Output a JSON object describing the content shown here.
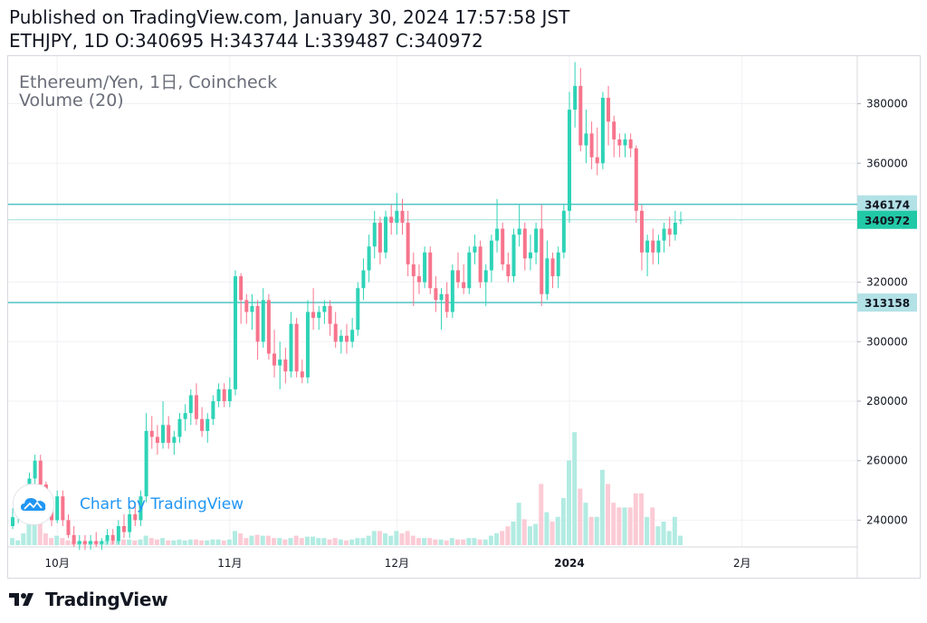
{
  "header": {
    "published": "Published on TradingView.com, January 30, 2024 17:57:58 JST",
    "ohlc": "ETHJPY, 1D O:340695 H:343744 L:339487 C:340972"
  },
  "legend": {
    "title": "Ethereum/Yen, 1日, Coincheck",
    "volume": "Volume (20)"
  },
  "watermark": {
    "text": "Chart by TradingView",
    "icon": "tradingview-cloud-icon"
  },
  "footer": {
    "brand": "TradingView",
    "icon": "tradingview-logo-icon"
  },
  "colors": {
    "up": "#26a69a",
    "down": "#ef5350",
    "upBody": "#2ed3b7",
    "downBody": "#f7748c",
    "upVol": "#b2ebe2",
    "downVol": "#fbcbd5",
    "hline": "#4fc3c3",
    "lastPriceBg": "#22c9a6",
    "levelBg": "#b2e1e6"
  },
  "chart_data": {
    "type": "candlestick",
    "symbol": "ETHJPY",
    "interval": "1D",
    "exchange": "Coincheck",
    "y_ticks": [
      240000,
      260000,
      280000,
      300000,
      320000,
      340000,
      360000,
      380000
    ],
    "ylim": [
      231000,
      396000
    ],
    "x_ticks": [
      {
        "label": "10月",
        "index": 8
      },
      {
        "label": "11月",
        "index": 39
      },
      {
        "label": "12月",
        "index": 69
      },
      {
        "label": "2024",
        "index": 100,
        "bold": true
      },
      {
        "label": "2月",
        "index": 131
      }
    ],
    "horizontal_levels": [
      {
        "label": "346174",
        "value": 346174
      },
      {
        "label": "313158",
        "value": 313158
      }
    ],
    "last_price": {
      "label": "340972",
      "value": 340972
    },
    "ohlc": [
      [
        238000,
        244000,
        237000,
        241000
      ],
      [
        241000,
        245000,
        239000,
        242000
      ],
      [
        242000,
        250000,
        240000,
        248000
      ],
      [
        248000,
        256000,
        246000,
        254000
      ],
      [
        254000,
        262000,
        252000,
        260000
      ],
      [
        260000,
        262000,
        250000,
        252000
      ],
      [
        252000,
        253000,
        242000,
        244000
      ],
      [
        244000,
        248000,
        238000,
        240000
      ],
      [
        240000,
        250000,
        239000,
        248000
      ],
      [
        248000,
        250000,
        238000,
        240000
      ],
      [
        240000,
        242000,
        234000,
        235000
      ],
      [
        235000,
        238000,
        231000,
        232000
      ],
      [
        232000,
        235000,
        230000,
        233000
      ],
      [
        233000,
        235000,
        230000,
        232000
      ],
      [
        232000,
        235000,
        230000,
        233000
      ],
      [
        233000,
        236000,
        231000,
        232000
      ],
      [
        232000,
        234000,
        230000,
        233000
      ],
      [
        233000,
        237000,
        232000,
        235000
      ],
      [
        235000,
        237000,
        232000,
        233000
      ],
      [
        233000,
        240000,
        232000,
        238000
      ],
      [
        238000,
        242000,
        234000,
        236000
      ],
      [
        236000,
        244000,
        234000,
        242000
      ],
      [
        242000,
        246000,
        238000,
        240000
      ],
      [
        240000,
        250000,
        238000,
        248000
      ],
      [
        248000,
        276000,
        246000,
        270000
      ],
      [
        270000,
        275000,
        264000,
        268000
      ],
      [
        268000,
        272000,
        262000,
        266000
      ],
      [
        266000,
        280000,
        264000,
        272000
      ],
      [
        272000,
        275000,
        264000,
        266000
      ],
      [
        266000,
        270000,
        262000,
        268000
      ],
      [
        268000,
        276000,
        266000,
        274000
      ],
      [
        274000,
        279000,
        270000,
        276000
      ],
      [
        276000,
        284000,
        272000,
        282000
      ],
      [
        282000,
        286000,
        272000,
        274000
      ],
      [
        274000,
        278000,
        268000,
        270000
      ],
      [
        270000,
        276000,
        266000,
        274000
      ],
      [
        274000,
        282000,
        272000,
        280000
      ],
      [
        280000,
        286000,
        278000,
        284000
      ],
      [
        284000,
        286000,
        278000,
        280000
      ],
      [
        280000,
        288000,
        278000,
        284000
      ],
      [
        284000,
        324000,
        282000,
        322000
      ],
      [
        322000,
        323000,
        306000,
        314000
      ],
      [
        314000,
        316000,
        306000,
        310000
      ],
      [
        310000,
        316000,
        304000,
        312000
      ],
      [
        312000,
        314000,
        294000,
        300000
      ],
      [
        300000,
        318000,
        298000,
        314000
      ],
      [
        314000,
        316000,
        294000,
        296000
      ],
      [
        296000,
        304000,
        288000,
        292000
      ],
      [
        292000,
        300000,
        284000,
        294000
      ],
      [
        294000,
        298000,
        286000,
        290000
      ],
      [
        290000,
        310000,
        288000,
        306000
      ],
      [
        306000,
        308000,
        288000,
        290000
      ],
      [
        290000,
        294000,
        286000,
        288000
      ],
      [
        288000,
        314000,
        286000,
        310000
      ],
      [
        310000,
        318000,
        304000,
        308000
      ],
      [
        308000,
        312000,
        304000,
        310000
      ],
      [
        310000,
        314000,
        306000,
        312000
      ],
      [
        312000,
        314000,
        302000,
        306000
      ],
      [
        306000,
        310000,
        298000,
        300000
      ],
      [
        300000,
        304000,
        296000,
        302000
      ],
      [
        302000,
        306000,
        296000,
        300000
      ],
      [
        300000,
        308000,
        298000,
        304000
      ],
      [
        304000,
        320000,
        302000,
        318000
      ],
      [
        318000,
        328000,
        314000,
        324000
      ],
      [
        324000,
        336000,
        320000,
        332000
      ],
      [
        332000,
        344000,
        328000,
        340000
      ],
      [
        340000,
        342000,
        326000,
        330000
      ],
      [
        330000,
        344000,
        328000,
        342000
      ],
      [
        342000,
        346000,
        336000,
        340000
      ],
      [
        340000,
        350000,
        336000,
        344000
      ],
      [
        344000,
        348000,
        336000,
        340000
      ],
      [
        340000,
        344000,
        322000,
        326000
      ],
      [
        326000,
        330000,
        312000,
        322000
      ],
      [
        322000,
        326000,
        316000,
        320000
      ],
      [
        320000,
        332000,
        318000,
        330000
      ],
      [
        330000,
        332000,
        316000,
        318000
      ],
      [
        318000,
        322000,
        310000,
        314000
      ],
      [
        314000,
        318000,
        304000,
        316000
      ],
      [
        316000,
        320000,
        308000,
        310000
      ],
      [
        310000,
        326000,
        308000,
        324000
      ],
      [
        324000,
        330000,
        318000,
        320000
      ],
      [
        320000,
        326000,
        316000,
        318000
      ],
      [
        318000,
        332000,
        316000,
        330000
      ],
      [
        330000,
        336000,
        326000,
        332000
      ],
      [
        332000,
        334000,
        318000,
        320000
      ],
      [
        320000,
        326000,
        312000,
        324000
      ],
      [
        324000,
        336000,
        320000,
        334000
      ],
      [
        334000,
        348000,
        330000,
        338000
      ],
      [
        338000,
        340000,
        324000,
        326000
      ],
      [
        326000,
        330000,
        320000,
        322000
      ],
      [
        322000,
        338000,
        320000,
        336000
      ],
      [
        336000,
        346000,
        332000,
        338000
      ],
      [
        338000,
        340000,
        324000,
        328000
      ],
      [
        328000,
        336000,
        324000,
        330000
      ],
      [
        330000,
        340000,
        326000,
        338000
      ],
      [
        338000,
        346000,
        312000,
        316000
      ],
      [
        316000,
        334000,
        314000,
        328000
      ],
      [
        328000,
        330000,
        318000,
        322000
      ],
      [
        322000,
        332000,
        318000,
        330000
      ],
      [
        330000,
        346000,
        328000,
        344000
      ],
      [
        344000,
        384000,
        340000,
        378000
      ],
      [
        378000,
        394000,
        372000,
        386000
      ],
      [
        386000,
        392000,
        364000,
        366000
      ],
      [
        366000,
        378000,
        360000,
        370000
      ],
      [
        370000,
        374000,
        358000,
        362000
      ],
      [
        362000,
        372000,
        356000,
        360000
      ],
      [
        360000,
        384000,
        358000,
        382000
      ],
      [
        382000,
        386000,
        366000,
        374000
      ],
      [
        374000,
        376000,
        362000,
        368000
      ],
      [
        368000,
        370000,
        362000,
        366000
      ],
      [
        366000,
        370000,
        362000,
        368000
      ],
      [
        368000,
        370000,
        362000,
        365000
      ],
      [
        365000,
        366000,
        340000,
        344000
      ],
      [
        344000,
        346000,
        324000,
        330000
      ],
      [
        330000,
        336000,
        322000,
        334000
      ],
      [
        334000,
        338000,
        326000,
        330000
      ],
      [
        330000,
        336000,
        326000,
        334000
      ],
      [
        334000,
        340000,
        330000,
        338000
      ],
      [
        338000,
        342000,
        332000,
        336000
      ],
      [
        336000,
        344000,
        334000,
        340000
      ],
      [
        340695,
        343744,
        339487,
        340972
      ]
    ],
    "volume": [
      [
        0.15,
        1
      ],
      [
        0.1,
        1
      ],
      [
        0.25,
        1
      ],
      [
        0.6,
        1
      ],
      [
        0.85,
        1
      ],
      [
        0.5,
        0
      ],
      [
        0.25,
        0
      ],
      [
        0.15,
        0
      ],
      [
        0.2,
        1
      ],
      [
        0.15,
        0
      ],
      [
        0.1,
        0
      ],
      [
        0.08,
        0
      ],
      [
        0.08,
        1
      ],
      [
        0.08,
        0
      ],
      [
        0.08,
        1
      ],
      [
        0.08,
        0
      ],
      [
        0.08,
        1
      ],
      [
        0.1,
        1
      ],
      [
        0.08,
        0
      ],
      [
        0.1,
        1
      ],
      [
        0.12,
        0
      ],
      [
        0.12,
        1
      ],
      [
        0.1,
        0
      ],
      [
        0.12,
        1
      ],
      [
        0.2,
        1
      ],
      [
        0.15,
        0
      ],
      [
        0.12,
        0
      ],
      [
        0.15,
        1
      ],
      [
        0.1,
        0
      ],
      [
        0.1,
        1
      ],
      [
        0.12,
        1
      ],
      [
        0.1,
        1
      ],
      [
        0.12,
        1
      ],
      [
        0.12,
        0
      ],
      [
        0.1,
        0
      ],
      [
        0.1,
        1
      ],
      [
        0.12,
        1
      ],
      [
        0.12,
        1
      ],
      [
        0.1,
        0
      ],
      [
        0.12,
        1
      ],
      [
        0.3,
        1
      ],
      [
        0.25,
        0
      ],
      [
        0.15,
        0
      ],
      [
        0.2,
        1
      ],
      [
        0.22,
        0
      ],
      [
        0.2,
        1
      ],
      [
        0.2,
        0
      ],
      [
        0.15,
        0
      ],
      [
        0.15,
        1
      ],
      [
        0.12,
        0
      ],
      [
        0.15,
        1
      ],
      [
        0.2,
        0
      ],
      [
        0.15,
        0
      ],
      [
        0.18,
        1
      ],
      [
        0.18,
        1
      ],
      [
        0.15,
        1
      ],
      [
        0.15,
        1
      ],
      [
        0.12,
        0
      ],
      [
        0.15,
        0
      ],
      [
        0.12,
        1
      ],
      [
        0.1,
        0
      ],
      [
        0.12,
        1
      ],
      [
        0.15,
        1
      ],
      [
        0.15,
        1
      ],
      [
        0.2,
        1
      ],
      [
        0.3,
        1
      ],
      [
        0.3,
        0
      ],
      [
        0.25,
        1
      ],
      [
        0.2,
        1
      ],
      [
        0.3,
        1
      ],
      [
        0.25,
        0
      ],
      [
        0.3,
        0
      ],
      [
        0.2,
        0
      ],
      [
        0.15,
        0
      ],
      [
        0.15,
        1
      ],
      [
        0.15,
        0
      ],
      [
        0.12,
        0
      ],
      [
        0.12,
        1
      ],
      [
        0.1,
        0
      ],
      [
        0.15,
        1
      ],
      [
        0.12,
        0
      ],
      [
        0.12,
        0
      ],
      [
        0.15,
        1
      ],
      [
        0.15,
        1
      ],
      [
        0.12,
        0
      ],
      [
        0.12,
        1
      ],
      [
        0.2,
        1
      ],
      [
        0.25,
        1
      ],
      [
        0.3,
        0
      ],
      [
        0.4,
        0
      ],
      [
        0.5,
        1
      ],
      [
        0.9,
        1
      ],
      [
        0.55,
        0
      ],
      [
        0.4,
        1
      ],
      [
        0.45,
        1
      ],
      [
        1.3,
        0
      ],
      [
        0.7,
        1
      ],
      [
        0.5,
        0
      ],
      [
        0.6,
        1
      ],
      [
        1.0,
        1
      ],
      [
        1.8,
        1
      ],
      [
        2.4,
        1
      ],
      [
        1.2,
        0
      ],
      [
        0.9,
        1
      ],
      [
        0.6,
        0
      ],
      [
        0.6,
        1
      ],
      [
        1.6,
        1
      ],
      [
        1.3,
        0
      ],
      [
        0.9,
        0
      ],
      [
        0.8,
        0
      ],
      [
        0.8,
        1
      ],
      [
        0.8,
        0
      ],
      [
        1.1,
        0
      ],
      [
        1.1,
        0
      ],
      [
        0.6,
        1
      ],
      [
        0.8,
        0
      ],
      [
        0.4,
        1
      ],
      [
        0.5,
        1
      ],
      [
        0.3,
        1
      ],
      [
        0.6,
        1
      ],
      [
        0.2,
        1
      ]
    ]
  }
}
